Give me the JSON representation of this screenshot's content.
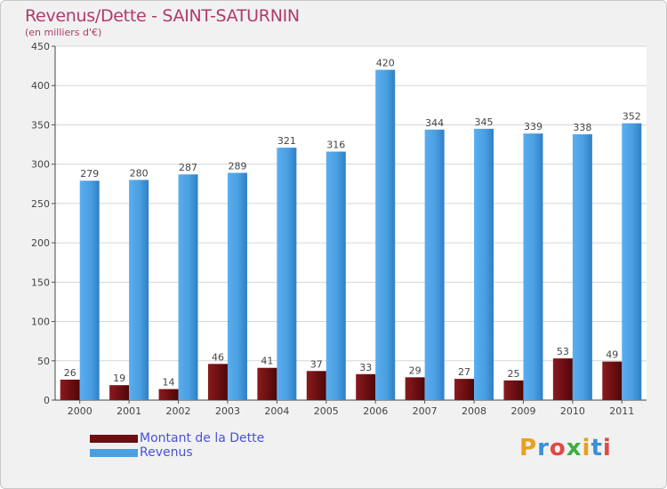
{
  "chart_data": {
    "type": "bar",
    "title": "Revenus/Dette - SAINT-SATURNIN",
    "subtitle": "(en milliers d'€)",
    "categories": [
      "2000",
      "2001",
      "2002",
      "2003",
      "2004",
      "2005",
      "2006",
      "2007",
      "2008",
      "2009",
      "2010",
      "2011"
    ],
    "series": [
      {
        "name": "Montant de la Dette",
        "color": "#6b0f12",
        "values": [
          26,
          19,
          14,
          46,
          41,
          37,
          33,
          29,
          27,
          25,
          53,
          49
        ]
      },
      {
        "name": "Revenus",
        "color": "#4a9fe0",
        "values": [
          279,
          280,
          287,
          289,
          321,
          316,
          420,
          344,
          345,
          339,
          338,
          352
        ]
      }
    ],
    "ylim": [
      0,
      450
    ],
    "yticks": [
      0,
      50,
      100,
      150,
      200,
      250,
      300,
      350,
      400,
      450
    ],
    "grid": true,
    "legend_position": "bottom-left"
  },
  "logo": {
    "text": "Proxiti",
    "letters": [
      "P",
      "r",
      "o",
      "x",
      "i",
      "t",
      "i"
    ],
    "colors": [
      "#e8a020",
      "#3a8fd8",
      "#e04848",
      "#3ab040",
      "#e8a020",
      "#3a8fd8",
      "#e04848"
    ]
  }
}
